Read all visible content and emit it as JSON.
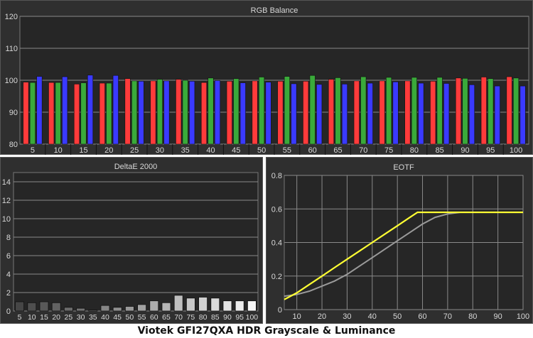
{
  "footer": "Viotek GFI27QXA HDR Grayscale & Luminance",
  "chart_data": [
    {
      "type": "bar",
      "title": "RGB Balance",
      "ylim": [
        80,
        120
      ],
      "yticks": [
        80,
        90,
        100,
        110,
        120
      ],
      "grid": true,
      "categories": [
        "5",
        "10",
        "15",
        "20",
        "25",
        "30",
        "35",
        "40",
        "45",
        "50",
        "55",
        "60",
        "65",
        "70",
        "75",
        "80",
        "85",
        "90",
        "95",
        "100"
      ],
      "series": [
        {
          "color": "#ff3b3b",
          "values": [
            99.4,
            99.3,
            98.8,
            99.1,
            100.5,
            99.8,
            100.3,
            99.3,
            99.7,
            99.8,
            99.7,
            99.7,
            100.3,
            99.8,
            99.8,
            99.8,
            99.7,
            100.7,
            101.0,
            101.1
          ]
        },
        {
          "color": "#3aaa3a",
          "values": [
            99.3,
            99.3,
            99.2,
            99.1,
            99.8,
            100.3,
            100.0,
            100.7,
            100.5,
            101.0,
            101.2,
            101.5,
            100.8,
            101.1,
            100.9,
            100.9,
            100.9,
            100.6,
            100.5,
            100.7
          ]
        },
        {
          "color": "#3a3aff",
          "values": [
            101.2,
            101.1,
            101.6,
            101.5,
            99.7,
            99.8,
            99.7,
            99.9,
            99.2,
            99.4,
            98.9,
            98.7,
            98.8,
            99.1,
            99.5,
            99.1,
            99.0,
            98.6,
            98.2,
            98.2
          ]
        }
      ]
    },
    {
      "type": "bar",
      "title": "DeltaE 2000",
      "ylim": [
        0,
        15
      ],
      "yticks": [
        0,
        2,
        4,
        6,
        8,
        10,
        12,
        14
      ],
      "grid": true,
      "categories": [
        "5",
        "10",
        "15",
        "20",
        "25",
        "30",
        "35",
        "40",
        "45",
        "50",
        "55",
        "60",
        "65",
        "70",
        "75",
        "80",
        "85",
        "90",
        "95",
        "100"
      ],
      "values": [
        1.0,
        0.9,
        1.0,
        0.9,
        0.4,
        0.3,
        0.1,
        0.6,
        0.4,
        0.5,
        0.7,
        1.1,
        0.9,
        1.7,
        1.4,
        1.5,
        1.4,
        1.1,
        1.1,
        1.1
      ]
    },
    {
      "type": "line",
      "title": "EOTF",
      "xlim": [
        5,
        100
      ],
      "ylim": [
        0,
        0.8
      ],
      "xticks": [
        10,
        20,
        30,
        40,
        50,
        60,
        70,
        80,
        90,
        100
      ],
      "yticks": [
        0,
        0.2,
        0.4,
        0.6,
        0.8
      ],
      "grid": true,
      "series": [
        {
          "color": "#9a9a9a",
          "x": [
            5,
            10,
            15,
            20,
            25,
            30,
            35,
            40,
            45,
            50,
            55,
            60,
            65,
            70,
            75,
            80,
            85,
            90,
            95,
            100
          ],
          "y": [
            0.08,
            0.09,
            0.11,
            0.14,
            0.17,
            0.21,
            0.26,
            0.31,
            0.36,
            0.41,
            0.46,
            0.51,
            0.55,
            0.57,
            0.58,
            0.58,
            0.58,
            0.58,
            0.58,
            0.58
          ]
        },
        {
          "color": "#ffff33",
          "x": [
            5,
            10,
            15,
            20,
            25,
            30,
            35,
            40,
            45,
            50,
            55,
            58,
            60,
            65,
            70,
            75,
            80,
            85,
            90,
            95,
            100
          ],
          "y": [
            0.06,
            0.1,
            0.15,
            0.2,
            0.25,
            0.3,
            0.35,
            0.4,
            0.45,
            0.5,
            0.55,
            0.58,
            0.58,
            0.58,
            0.58,
            0.58,
            0.58,
            0.58,
            0.58,
            0.58,
            0.58
          ]
        }
      ]
    }
  ]
}
